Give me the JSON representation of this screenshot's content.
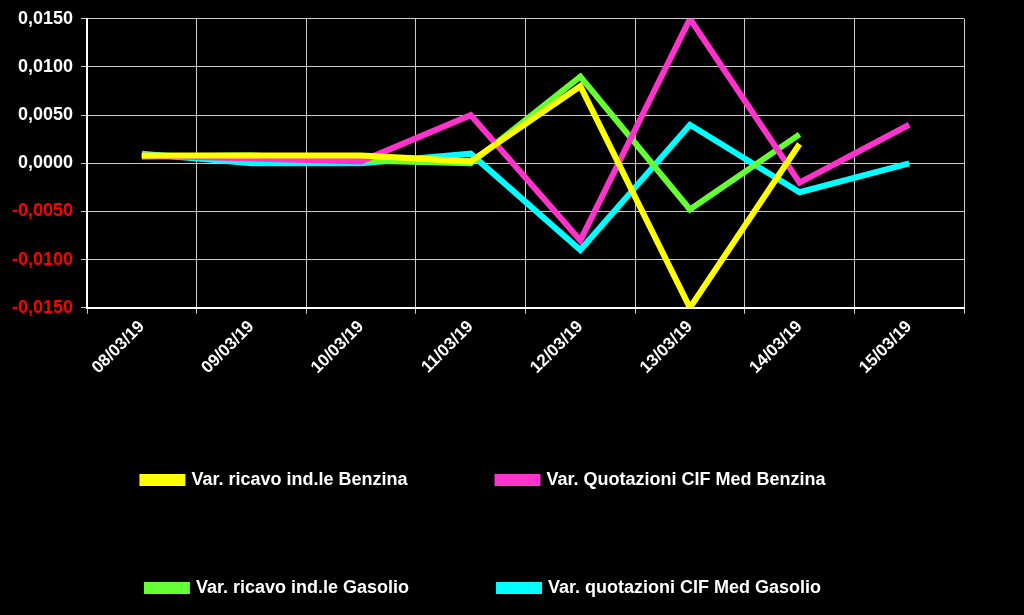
{
  "chart_data": {
    "type": "line",
    "categories": [
      "08/03/19",
      "09/03/19",
      "10/03/19",
      "11/03/19",
      "12/03/19",
      "13/03/19",
      "14/03/19",
      "15/03/19"
    ],
    "series": [
      {
        "name": "Var. ricavo ind.le Benzina",
        "color": "#ffff00",
        "values": [
          0.0008,
          0.0008,
          0.0008,
          0.0002,
          0.008,
          -0.015,
          0.002,
          null
        ]
      },
      {
        "name": "Var. Quotazioni CIF Med Benzina",
        "color": "#ff33cc",
        "values": [
          0.0008,
          0.0005,
          0.0002,
          0.005,
          -0.008,
          0.015,
          -0.002,
          0.004
        ]
      },
      {
        "name": "Var. ricavo ind.le Gasolio",
        "color": "#66ff33",
        "values": [
          0.0007,
          0.0008,
          0.0003,
          0.0,
          0.009,
          -0.0048,
          0.003,
          null
        ]
      },
      {
        "name": "Var. quotazioni CIF Med Gasolio",
        "color": "#00ffff",
        "values": [
          0.001,
          0.0,
          0.0,
          0.001,
          -0.009,
          0.004,
          -0.003,
          0.0
        ]
      }
    ],
    "ylim": [
      -0.015,
      0.015
    ],
    "yticks": [
      {
        "value": -0.015,
        "label": "-0,0150"
      },
      {
        "value": -0.01,
        "label": "-0,0100"
      },
      {
        "value": -0.005,
        "label": "-0,0050"
      },
      {
        "value": 0,
        "label": "0,0000"
      },
      {
        "value": 0.005,
        "label": "0,0050"
      },
      {
        "value": 0.01,
        "label": "0,0100"
      },
      {
        "value": 0.015,
        "label": "0,0150"
      }
    ],
    "grid": true,
    "legend": "bottom"
  }
}
